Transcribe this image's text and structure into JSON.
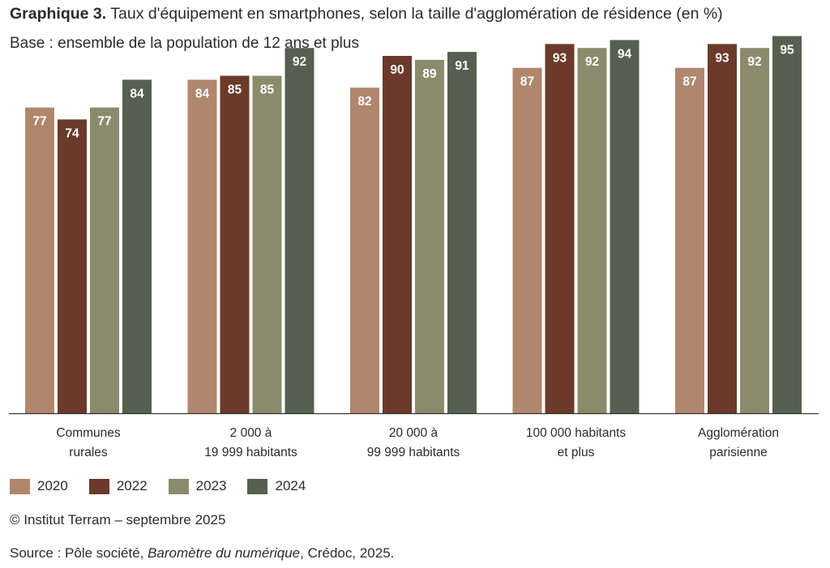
{
  "title_prefix": "Graphique 3.",
  "title": " Taux d'équipement en smartphones, selon la taille d'agglomération de résidence (en %)",
  "subtitle": "Base : ensemble de la population de 12 ans et plus",
  "colors": {
    "2020": "#b0866d",
    "2022": "#6b3a2a",
    "2023": "#8a8b6d",
    "2024": "#566050",
    "axis": "#333333"
  },
  "chart_data": {
    "type": "bar",
    "categories": [
      [
        "Communes",
        "rurales"
      ],
      [
        "2 000 à",
        "19 999 habitants"
      ],
      [
        "20 000 à",
        "99 999 habitants"
      ],
      [
        "100 000 habitants",
        "et plus"
      ],
      [
        "Agglomération",
        "parisienne"
      ]
    ],
    "series": [
      {
        "name": "2020",
        "values": [
          77,
          84,
          82,
          87,
          87
        ]
      },
      {
        "name": "2022",
        "values": [
          74,
          85,
          90,
          93,
          93
        ]
      },
      {
        "name": "2023",
        "values": [
          77,
          85,
          89,
          92,
          92
        ]
      },
      {
        "name": "2024",
        "values": [
          84,
          92,
          91,
          94,
          95
        ]
      }
    ],
    "ylim": [
      0,
      100
    ],
    "grid": false,
    "legend_position": "bottom-left"
  },
  "copyright": "© Institut Terram – septembre 2025",
  "source": {
    "prefix": "Source : Pôle société, ",
    "italic": "Baromètre du numérique",
    "suffix": ", Crédoc, 2025."
  }
}
